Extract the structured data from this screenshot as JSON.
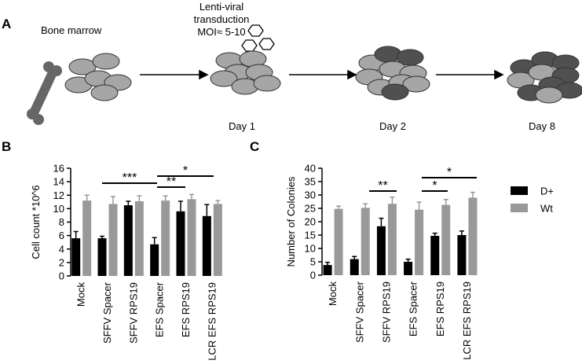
{
  "panels": [
    "A",
    "B",
    "C"
  ],
  "diagram": {
    "bone_marrow": "Bone marrow",
    "transduction": [
      "Lenti-viral",
      "transduction",
      "MOI≈ 5-10"
    ],
    "days": [
      "Day 1",
      "Day 2",
      "Day 8"
    ]
  },
  "chart_data": [
    {
      "type": "bar",
      "ylabel": "Cell count *10^6",
      "categories": [
        "Mock",
        "SFFV Spacer",
        "SFFV RPS19",
        "EFS Spacer",
        "EFS RPS19",
        "LCR EFS RPS19"
      ],
      "series": [
        {
          "color": "#000000",
          "values": [
            5.6,
            5.6,
            10.5,
            4.7,
            9.6,
            8.9
          ],
          "errors": [
            1.0,
            0.3,
            0.6,
            1.0,
            1.5,
            1.7
          ]
        },
        {
          "color": "#999999",
          "values": [
            11.2,
            10.7,
            11.1,
            11.2,
            11.4,
            10.7
          ],
          "errors": [
            0.8,
            1.1,
            0.8,
            0.7,
            0.7,
            0.5
          ]
        }
      ],
      "ylim": [
        0,
        16
      ],
      "yticks": [
        0,
        2,
        4,
        6,
        8,
        10,
        12,
        14,
        16
      ],
      "annotations": [
        "***",
        "**",
        "*"
      ]
    },
    {
      "type": "bar",
      "ylabel": "Number of Colonies",
      "categories": [
        "Mock",
        "SFFV Spacer",
        "SFFV RPS19",
        "EFS Spacer",
        "EFS RPS19",
        "LCR EFS RPS19"
      ],
      "series": [
        {
          "name": "D+",
          "color": "#000000",
          "values": [
            3.8,
            6.0,
            18.3,
            5.0,
            14.7,
            15.0
          ],
          "errors": [
            1.0,
            1.0,
            3.0,
            1.0,
            1.0,
            1.5
          ]
        },
        {
          "name": "Wt",
          "color": "#999999",
          "values": [
            24.8,
            25.2,
            26.7,
            24.5,
            26.3,
            29.0
          ],
          "errors": [
            1.0,
            1.5,
            2.5,
            2.8,
            2.0,
            2.0
          ]
        }
      ],
      "ylim": [
        0,
        40
      ],
      "yticks": [
        0,
        5,
        10,
        15,
        20,
        25,
        30,
        35,
        40
      ],
      "annotations": [
        "**",
        "*",
        "*"
      ]
    }
  ]
}
